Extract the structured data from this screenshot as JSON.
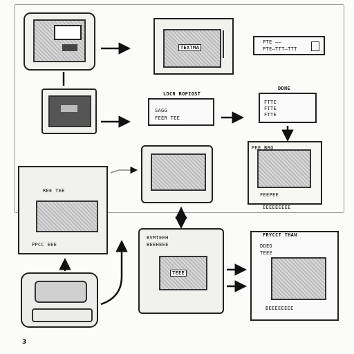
{
  "diagram": {
    "page_number": "3",
    "labels": {
      "unit_b": "TEXTMA",
      "unit_c_line1": "PTE ——",
      "unit_c_line2": "PTE—TTT—TTT",
      "header_d": "LDCR ROFIGST",
      "unit_d_line1": "SAGG",
      "unit_d_line2": "FEER TEE",
      "header_e": "DDHE",
      "unit_e_line1": "FTTE",
      "unit_e_line2": "FTTE",
      "unit_e_line3": "FTTE",
      "unit_g_label": "REE TEE",
      "unit_g_footer": "PPCC EEE",
      "unit_h_line1": "PEE BRO",
      "unit_h_line2": "FEEPEE",
      "unit_h_footer": "EEEEEEEEE",
      "unit_j_line1": "BVMTEEH",
      "unit_j_line2": "BEEHEEE",
      "unit_j_inner": "TEEE",
      "header_k": "FRYCCT THAN",
      "unit_k_line1": "DDED",
      "unit_k_line2": "TEEE",
      "unit_k_footer": "BEEEEEEEE"
    }
  }
}
